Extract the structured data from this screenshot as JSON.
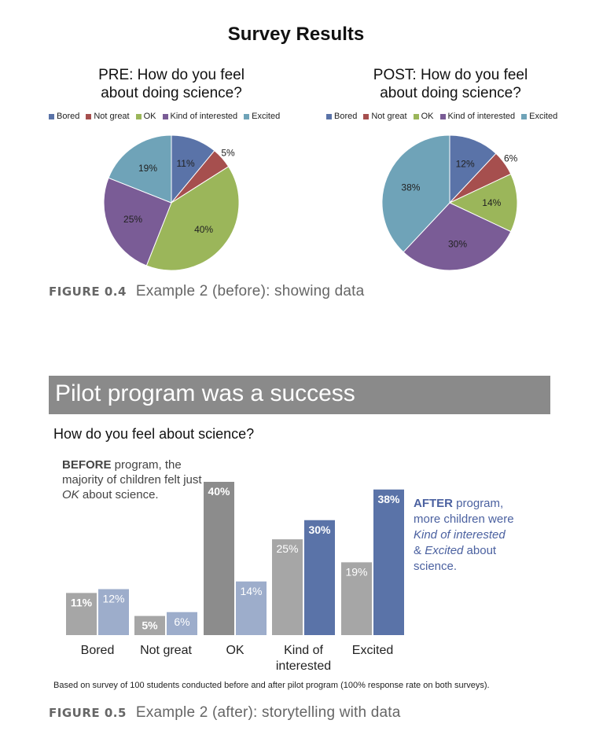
{
  "figure_04": {
    "title": "Survey Results",
    "caption_num": "FIGURE 0.4",
    "caption_text": "Example 2 (before): showing data"
  },
  "figure_05": {
    "banner": "Pilot program was a success",
    "subtitle": "How do you feel about science?",
    "before_note": {
      "strong": "BEFORE",
      "text1": " program, the majority of children felt just ",
      "em": "OK",
      "text2": " about science."
    },
    "after_note": {
      "strong": "AFTER",
      "text1": " program, more children were ",
      "em1": "Kind of interested",
      "text2": " & ",
      "em2": "Excited",
      "text3": " about science."
    },
    "footnote": "Based on survey of 100 students conducted before and after pilot program (100% response rate on both surveys).",
    "caption_num": "FIGURE 0.5",
    "caption_text": "Example 2 (after): storytelling with data"
  },
  "colors": {
    "bored": "#5a73a8",
    "not_great": "#a64f4e",
    "ok": "#9bb65a",
    "kind_of_interested": "#7a5c96",
    "excited": "#6fa3b8",
    "bar_before_dark": "#8c8c8c",
    "bar_before_light": "#a6a6a6",
    "bar_after_light": "#9dadcb",
    "bar_after_dark": "#5a73a8"
  },
  "chart_data": [
    {
      "type": "pie",
      "title": "PRE: How do you feel\nabout doing science?",
      "labels": [
        "Bored",
        "Not great",
        "OK",
        "Kind of interested",
        "Excited"
      ],
      "values": [
        11,
        5,
        40,
        25,
        19
      ],
      "value_labels": [
        "11%",
        "5%",
        "40%",
        "25%",
        "19%"
      ],
      "legend_position": "top"
    },
    {
      "type": "pie",
      "title": "POST: How do you feel\nabout doing science?",
      "labels": [
        "Bored",
        "Not great",
        "OK",
        "Kind of interested",
        "Excited"
      ],
      "values": [
        12,
        6,
        14,
        30,
        38
      ],
      "value_labels": [
        "12%",
        "6%",
        "14%",
        "30%",
        "38%"
      ],
      "legend_position": "top"
    },
    {
      "type": "bar",
      "title": "How do you feel about science?",
      "categories": [
        "Bored",
        "Not great",
        "OK",
        "Kind of\ninterested",
        "Excited"
      ],
      "series": [
        {
          "values": [
            11,
            5,
            40,
            25,
            19
          ],
          "labels": [
            "11%",
            "5%",
            "40%",
            "25%",
            "19%"
          ]
        },
        {
          "values": [
            12,
            6,
            14,
            30,
            38
          ],
          "labels": [
            "12%",
            "6%",
            "14%",
            "30%",
            "38%"
          ]
        }
      ],
      "ylim": [
        0,
        40
      ],
      "grid": false
    }
  ]
}
